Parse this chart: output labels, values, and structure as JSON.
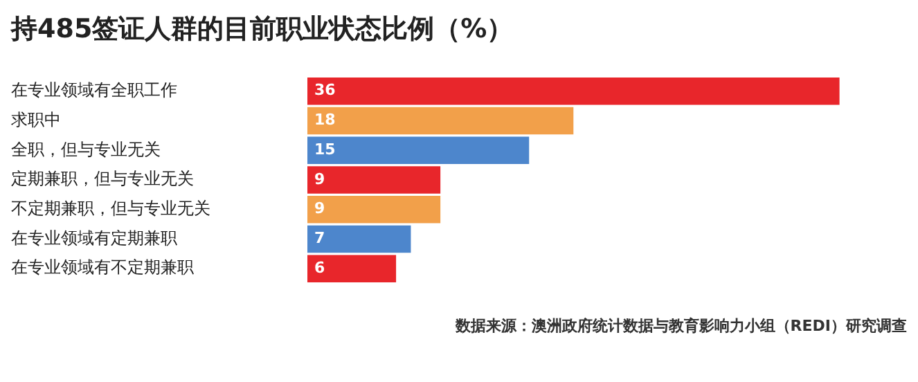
{
  "chart_data": {
    "type": "bar",
    "orientation": "horizontal",
    "title": "持485签证人群的目前职业状态比例（%）",
    "categories": [
      "在专业领域有全职工作",
      "求职中",
      "全职，但与专业无关",
      "定期兼职，但与专业无关",
      "不定期兼职，但与专业无关",
      "在专业领域有定期兼职",
      "在专业领域有不定期兼职"
    ],
    "values": [
      36,
      18,
      15,
      9,
      9,
      7,
      6
    ],
    "colors": [
      "#e8262b",
      "#f2a04a",
      "#4d86cc",
      "#e8262b",
      "#f2a04a",
      "#4d86cc",
      "#e8262b"
    ],
    "data_labels": true,
    "grid": false,
    "legend": false,
    "annotations": [
      "数据来源：澳洲政府统计数据与教育影响力小组（REDI）研究调查"
    ]
  }
}
